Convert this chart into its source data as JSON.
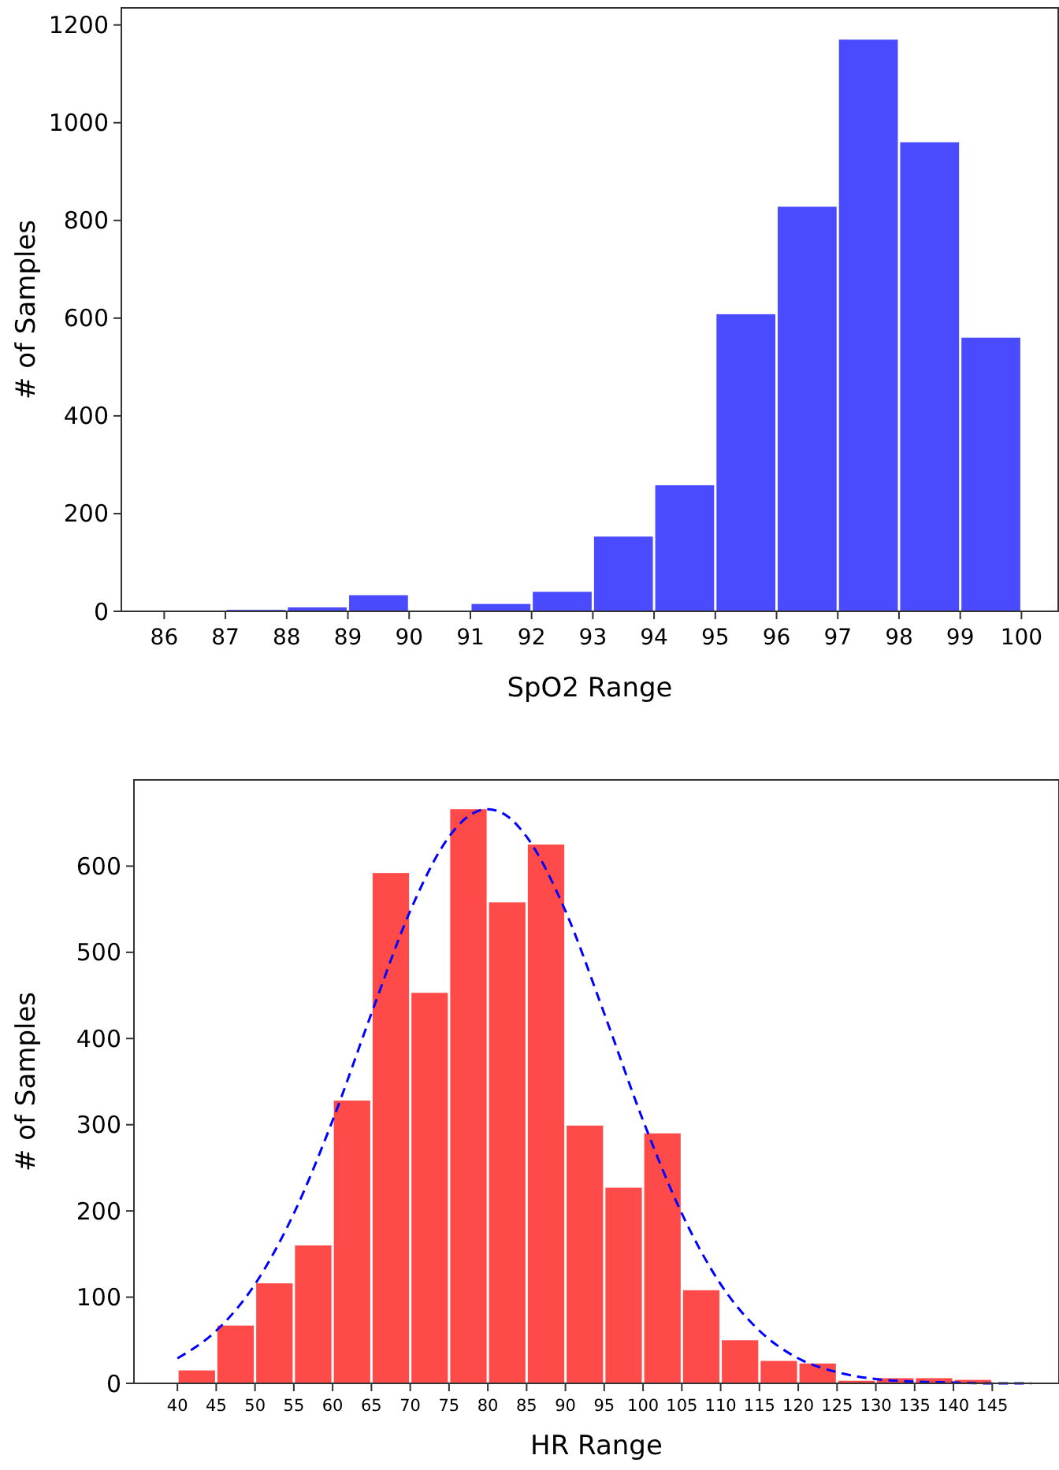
{
  "chart_data": [
    {
      "type": "histogram",
      "xlabel": "SpO2 Range",
      "ylabel": "# of Samples",
      "bins": [
        86,
        87,
        88,
        89,
        90,
        91,
        92,
        93,
        94,
        95,
        96,
        97,
        98,
        99,
        100
      ],
      "values": [
        0,
        3,
        8,
        33,
        0,
        15,
        40,
        153,
        258,
        608,
        828,
        1170,
        960,
        560
      ],
      "color": "#4a4aff",
      "xlim": [
        85.3,
        100.6
      ],
      "ylim": [
        0,
        1235
      ],
      "xticks": [
        86,
        87,
        88,
        89,
        90,
        91,
        92,
        93,
        94,
        95,
        96,
        97,
        98,
        99,
        100
      ],
      "yticks": [
        0,
        200,
        400,
        600,
        800,
        1000,
        1200
      ],
      "grid": false
    },
    {
      "type": "histogram",
      "xlabel": "HR Range",
      "ylabel": "# of Samples",
      "bins": [
        40,
        45,
        50,
        55,
        60,
        65,
        70,
        75,
        80,
        85,
        90,
        95,
        100,
        105,
        110,
        115,
        120,
        125,
        130,
        135,
        140,
        145
      ],
      "values": [
        15,
        67,
        116,
        160,
        328,
        592,
        453,
        666,
        558,
        625,
        299,
        227,
        290,
        108,
        50,
        26,
        23,
        3,
        6,
        6,
        4
      ],
      "color": "#ff4a4a",
      "xlim": [
        34.4,
        153.6
      ],
      "ylim": [
        0,
        700
      ],
      "xticks": [
        40,
        45,
        50,
        55,
        60,
        65,
        70,
        75,
        80,
        85,
        90,
        95,
        100,
        105,
        110,
        115,
        120,
        125,
        130,
        135,
        140,
        145
      ],
      "yticks": [
        0,
        100,
        200,
        300,
        400,
        500,
        600
      ],
      "grid": false,
      "series": [
        {
          "type": "line",
          "color": "#0000ff",
          "line_style": "dashed",
          "marker": "none",
          "x": [
            40,
            45,
            50,
            55,
            60,
            65,
            70,
            75,
            77.5,
            80,
            82.5,
            85,
            90,
            95,
            100,
            105,
            110,
            115,
            120,
            125,
            130,
            135,
            140,
            145,
            150
          ],
          "values": [
            29,
            61,
            115,
            197,
            305,
            429,
            548,
            634,
            658,
            666,
            658,
            634,
            548,
            429,
            305,
            197,
            115,
            61,
            29,
            13,
            5,
            2,
            1,
            0,
            0
          ]
        }
      ]
    }
  ]
}
